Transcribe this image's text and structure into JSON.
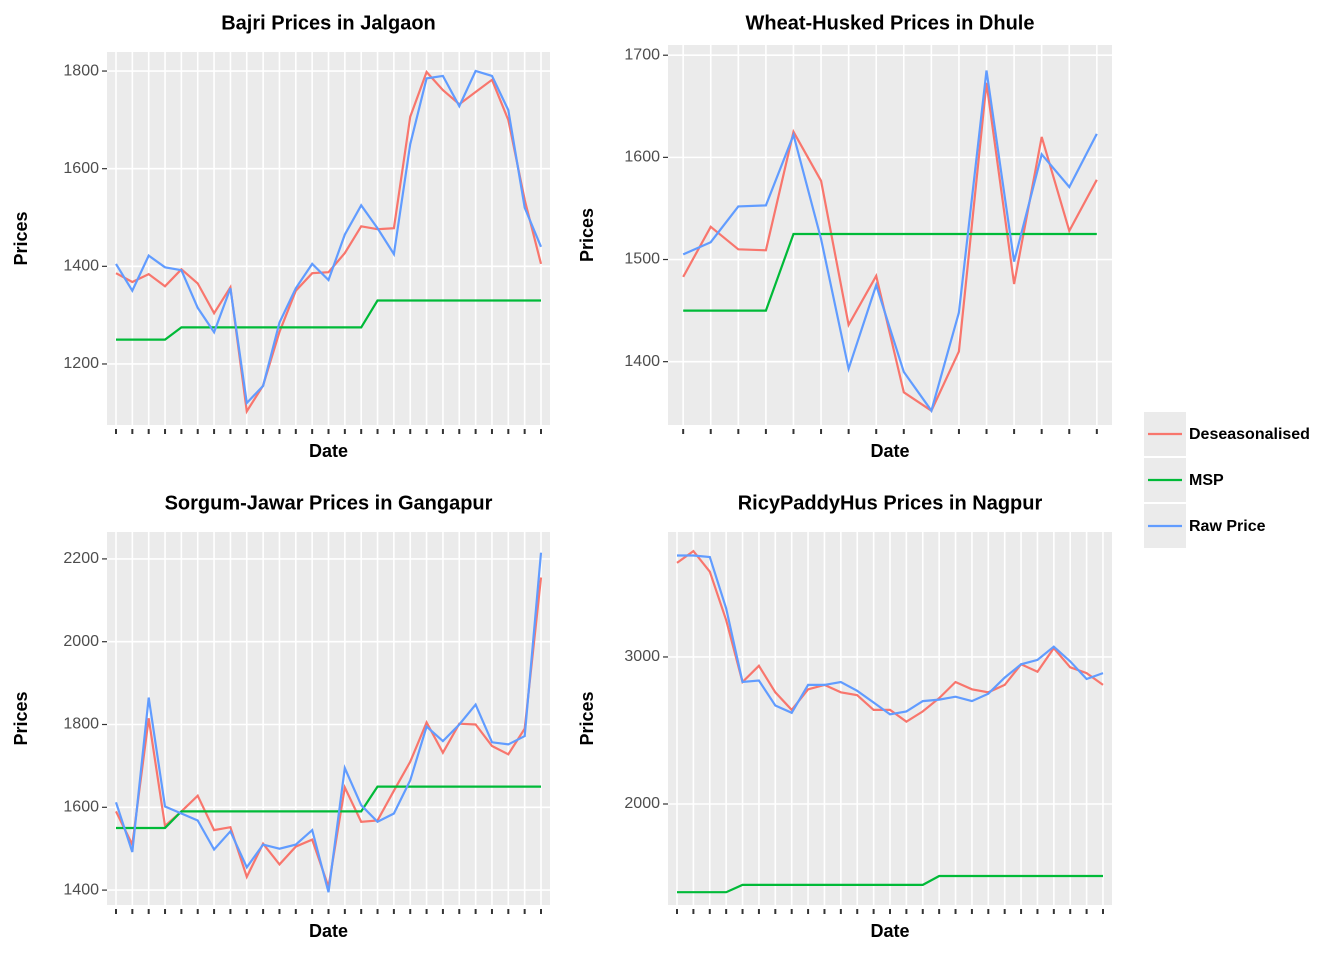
{
  "chart_data": [
    {
      "type": "line",
      "title": "Bajri Prices in Jalgaon",
      "xlabel": "Date",
      "ylabel": "Prices",
      "legend": "right",
      "grid": true,
      "categories": [
        null,
        null,
        null,
        null,
        null,
        null,
        null,
        null,
        null,
        null,
        null,
        null,
        null,
        null,
        null,
        null,
        null,
        null,
        null,
        null,
        null,
        null,
        null,
        null,
        null,
        null,
        null
      ],
      "ylim": [
        1075,
        1839
      ],
      "yticks": [
        1200,
        1400,
        1600,
        1800
      ],
      "series": [
        {
          "name": "Deseasonalised",
          "color": "#F8766D",
          "values": [
            1386,
            1368,
            1384,
            1359,
            1394,
            1365,
            1304,
            1357,
            1103,
            1156,
            1266,
            1350,
            1386,
            1388,
            1427,
            1482,
            1476,
            1478,
            1706,
            1798,
            1761,
            1732,
            1757,
            1782,
            1700,
            1536,
            1405
          ]
        },
        {
          "name": "MSP",
          "color": "#00BA38",
          "values": [
            1250,
            1250,
            1250,
            1250,
            1275,
            1275,
            1275,
            1275,
            1275,
            1275,
            1275,
            1275,
            1275,
            1275,
            1275,
            1275,
            1330,
            1330,
            1330,
            1330,
            1330,
            1330,
            1330,
            1330,
            1330,
            1330,
            1330
          ]
        },
        {
          "name": "Raw Price",
          "color": "#619CFF",
          "values": [
            1405,
            1350,
            1422,
            1398,
            1392,
            1315,
            1265,
            1355,
            1120,
            1155,
            1285,
            1355,
            1405,
            1372,
            1465,
            1525,
            1478,
            1425,
            1650,
            1785,
            1790,
            1728,
            1800,
            1790,
            1720,
            1520,
            1440
          ]
        }
      ]
    },
    {
      "type": "line",
      "title": "Wheat-Husked Prices in Dhule",
      "xlabel": "Date",
      "ylabel": "Prices",
      "grid": true,
      "categories": [
        null,
        null,
        null,
        null,
        null,
        null,
        null,
        null,
        null,
        null,
        null,
        null,
        null,
        null,
        null,
        null
      ],
      "ylim": [
        1338,
        1710
      ],
      "yticks": [
        1400,
        1500,
        1600,
        1700
      ],
      "series": [
        {
          "name": "Deseasonalised",
          "color": "#F8766D",
          "values": [
            1483,
            1532,
            1510,
            1509,
            1625,
            1577,
            1436,
            1484,
            1370,
            1352,
            1410,
            1673,
            1476,
            1620,
            1528,
            1578
          ]
        },
        {
          "name": "MSP",
          "color": "#00BA38",
          "values": [
            1450,
            1450,
            1450,
            1450,
            1525,
            1525,
            1525,
            1525,
            1525,
            1525,
            1525,
            1525,
            1525,
            1525,
            1525,
            1525
          ]
        },
        {
          "name": "Raw Price",
          "color": "#619CFF",
          "values": [
            1505,
            1517,
            1552,
            1553,
            1622,
            1520,
            1393,
            1475,
            1390,
            1352,
            1448,
            1685,
            1498,
            1603,
            1571,
            1623
          ]
        }
      ]
    },
    {
      "type": "line",
      "title": "Sorgum-Jawar Prices in Gangapur",
      "xlabel": "Date",
      "ylabel": "Prices",
      "grid": true,
      "categories": [
        null,
        null,
        null,
        null,
        null,
        null,
        null,
        null,
        null,
        null,
        null,
        null,
        null,
        null,
        null,
        null,
        null,
        null,
        null,
        null,
        null,
        null,
        null,
        null,
        null,
        null,
        null
      ],
      "ylim": [
        1364,
        2265
      ],
      "yticks": [
        1400,
        1600,
        1800,
        2000,
        2200
      ],
      "series": [
        {
          "name": "Deseasonalised",
          "color": "#F8766D",
          "values": [
            1590,
            1510,
            1815,
            1555,
            1590,
            1628,
            1545,
            1552,
            1432,
            1512,
            1462,
            1505,
            1522,
            1408,
            1648,
            1565,
            1568,
            1640,
            1710,
            1805,
            1732,
            1802,
            1800,
            1748,
            1728,
            1790,
            2155
          ]
        },
        {
          "name": "MSP",
          "color": "#00BA38",
          "values": [
            1550,
            1550,
            1550,
            1550,
            1590,
            1590,
            1590,
            1590,
            1590,
            1590,
            1590,
            1590,
            1590,
            1590,
            1590,
            1590,
            1650,
            1650,
            1650,
            1650,
            1650,
            1650,
            1650,
            1650,
            1650,
            1650,
            1650
          ]
        },
        {
          "name": "Raw Price",
          "color": "#619CFF",
          "values": [
            1612,
            1492,
            1865,
            1602,
            1585,
            1568,
            1498,
            1542,
            1455,
            1510,
            1500,
            1510,
            1545,
            1395,
            1695,
            1605,
            1565,
            1585,
            1665,
            1795,
            1760,
            1800,
            1848,
            1757,
            1752,
            1772,
            2215
          ]
        }
      ]
    },
    {
      "type": "line",
      "title": "RicyPaddyHus Prices in Nagpur",
      "xlabel": "Date",
      "ylabel": "Prices",
      "grid": true,
      "categories": [
        null,
        null,
        null,
        null,
        null,
        null,
        null,
        null,
        null,
        null,
        null,
        null,
        null,
        null,
        null,
        null,
        null,
        null,
        null,
        null,
        null,
        null,
        null,
        null,
        null,
        null,
        null
      ],
      "ylim": [
        1313,
        3850
      ],
      "yticks": [
        2000,
        3000
      ],
      "series": [
        {
          "name": "Deseasonalised",
          "color": "#F8766D",
          "values": [
            3640,
            3720,
            3580,
            3250,
            2830,
            2940,
            2760,
            2640,
            2780,
            2810,
            2760,
            2740,
            2640,
            2640,
            2560,
            2630,
            2720,
            2830,
            2780,
            2760,
            2810,
            2950,
            2900,
            3060,
            2930,
            2890,
            2810
          ]
        },
        {
          "name": "MSP",
          "color": "#00BA38",
          "values": [
            1400,
            1400,
            1400,
            1400,
            1450,
            1450,
            1450,
            1450,
            1450,
            1450,
            1450,
            1450,
            1450,
            1450,
            1450,
            1450,
            1510,
            1510,
            1510,
            1510,
            1510,
            1510,
            1510,
            1510,
            1510,
            1510,
            1510
          ]
        },
        {
          "name": "Raw Price",
          "color": "#619CFF",
          "values": [
            3690,
            3690,
            3680,
            3330,
            2830,
            2840,
            2670,
            2620,
            2810,
            2810,
            2830,
            2770,
            2690,
            2610,
            2630,
            2700,
            2710,
            2730,
            2700,
            2750,
            2860,
            2950,
            2980,
            3070,
            2970,
            2850,
            2890
          ]
        }
      ]
    }
  ]
}
